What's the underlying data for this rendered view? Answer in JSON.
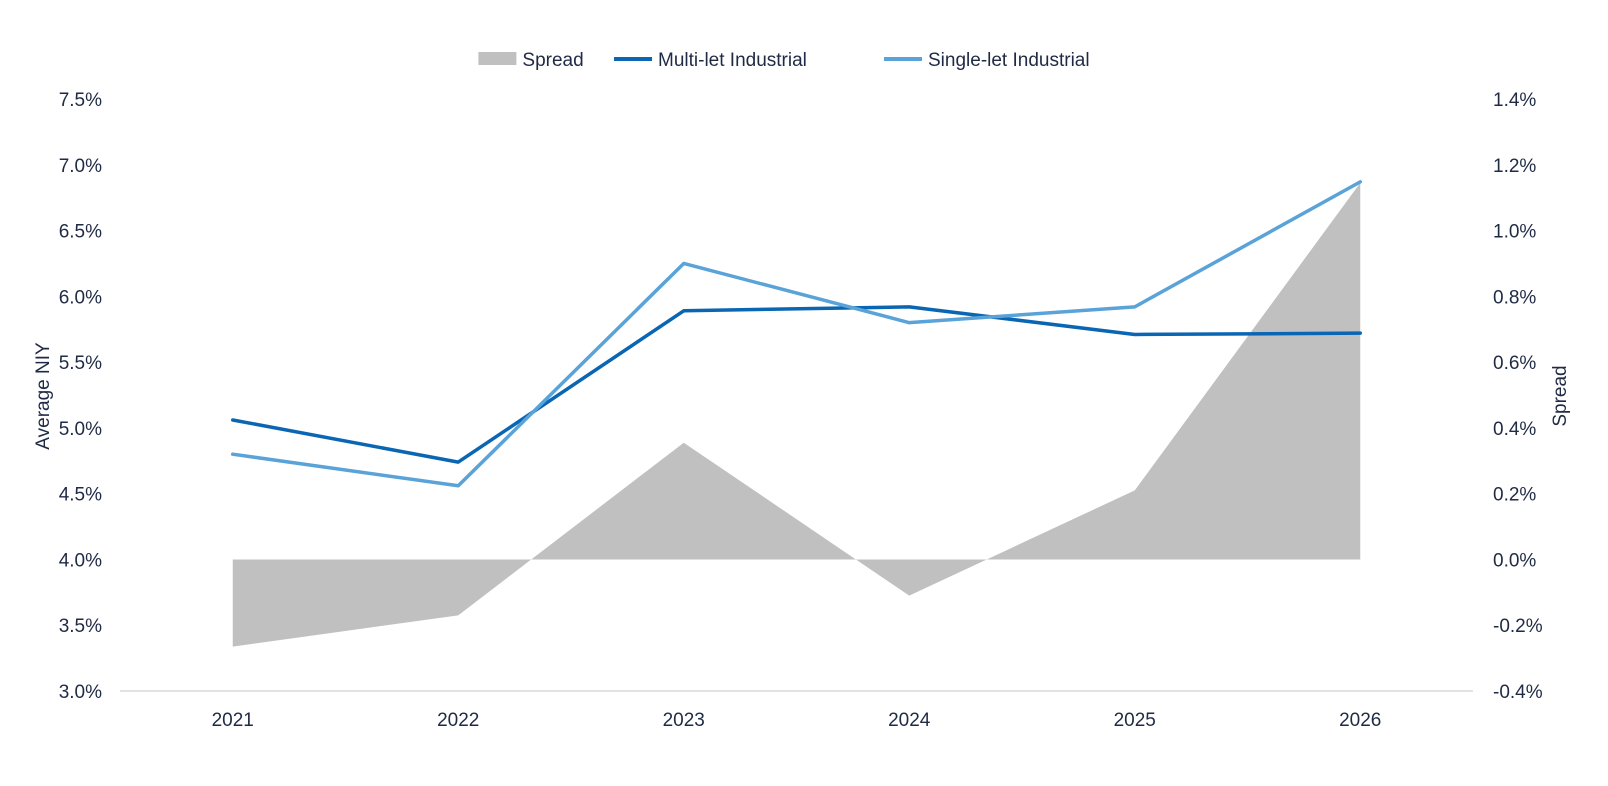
{
  "chart_data": {
    "type": "line",
    "categories": [
      "2021",
      "2022",
      "2023",
      "2024",
      "2025",
      "2026"
    ],
    "series": [
      {
        "name": "Multi-let Industrial",
        "axis": "left",
        "kind": "line",
        "color": "#0a66b3",
        "values": [
          5.06,
          4.74,
          5.89,
          5.92,
          5.71,
          5.72
        ]
      },
      {
        "name": "Single-let Industrial",
        "axis": "left",
        "kind": "line",
        "color": "#5aa3d8",
        "values": [
          4.8,
          4.56,
          6.25,
          5.8,
          5.92,
          6.87
        ]
      },
      {
        "name": "Spread",
        "axis": "right",
        "kind": "area",
        "color": "#c0c0c0",
        "values": [
          -0.265,
          -0.17,
          0.355,
          -0.11,
          0.21,
          1.145
        ]
      }
    ],
    "legend_order": [
      "Spread",
      "Multi-let Industrial",
      "Single-let Industrial"
    ],
    "legend_position": "top-center",
    "ylabel": "Average NIY",
    "y2label": "Spread",
    "ylim": [
      3.0,
      7.5
    ],
    "y2lim": [
      -0.4,
      1.4
    ],
    "yticks": [
      "3.0%",
      "3.5%",
      "4.0%",
      "4.5%",
      "5.0%",
      "5.5%",
      "6.0%",
      "6.5%",
      "7.0%",
      "7.5%"
    ],
    "y2ticks": [
      "-0.4%",
      "-0.2%",
      "0.0%",
      "0.2%",
      "0.4%",
      "0.6%",
      "0.8%",
      "1.0%",
      "1.2%",
      "1.4%"
    ],
    "grid": false
  }
}
